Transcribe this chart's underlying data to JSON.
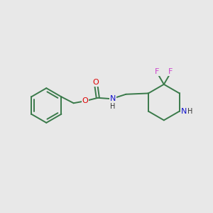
{
  "background_color": "#e8e8e8",
  "bond_color": "#3a7a4a",
  "bond_width": 1.4,
  "atom_colors": {
    "O": "#dd0000",
    "N": "#1111cc",
    "F": "#cc44cc",
    "H": "#333333",
    "C": "#3a7a4a"
  },
  "figsize": [
    3.0,
    3.0
  ],
  "dpi": 100,
  "xlim": [
    0,
    10
  ],
  "ylim": [
    0,
    10
  ]
}
